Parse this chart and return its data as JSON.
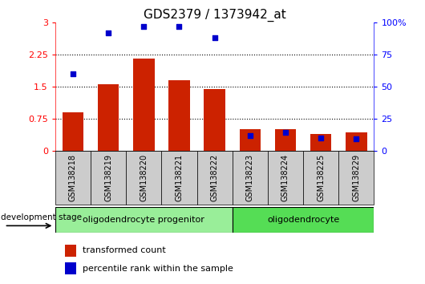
{
  "title": "GDS2379 / 1373942_at",
  "samples": [
    "GSM138218",
    "GSM138219",
    "GSM138220",
    "GSM138221",
    "GSM138222",
    "GSM138223",
    "GSM138224",
    "GSM138225",
    "GSM138229"
  ],
  "transformed_count": [
    0.9,
    1.55,
    2.15,
    1.65,
    1.45,
    0.5,
    0.5,
    0.38,
    0.42
  ],
  "percentile_rank": [
    60,
    92,
    97,
    97,
    88,
    12,
    14,
    10,
    9
  ],
  "ylim_left": [
    0,
    3
  ],
  "ylim_right": [
    0,
    100
  ],
  "yticks_left": [
    0,
    0.75,
    1.5,
    2.25,
    3
  ],
  "yticks_right": [
    0,
    25,
    50,
    75,
    100
  ],
  "ytick_labels_left": [
    "0",
    "0.75",
    "1.5",
    "2.25",
    "3"
  ],
  "ytick_labels_right": [
    "0",
    "25",
    "50",
    "75",
    "100%"
  ],
  "bar_color": "#CC2200",
  "dot_color": "#0000CC",
  "group1_label": "oligodendrocyte progenitor",
  "group2_label": "oligodendrocyte",
  "group1_count": 5,
  "group2_count": 4,
  "stage_label": "development stage",
  "legend_bar_label": "transformed count",
  "legend_dot_label": "percentile rank within the sample",
  "tick_bg_color": "#CCCCCC",
  "group1_bg": "#99EE99",
  "group2_bg": "#55DD55",
  "bar_width": 0.6,
  "figsize": [
    5.3,
    3.54
  ],
  "dpi": 100
}
